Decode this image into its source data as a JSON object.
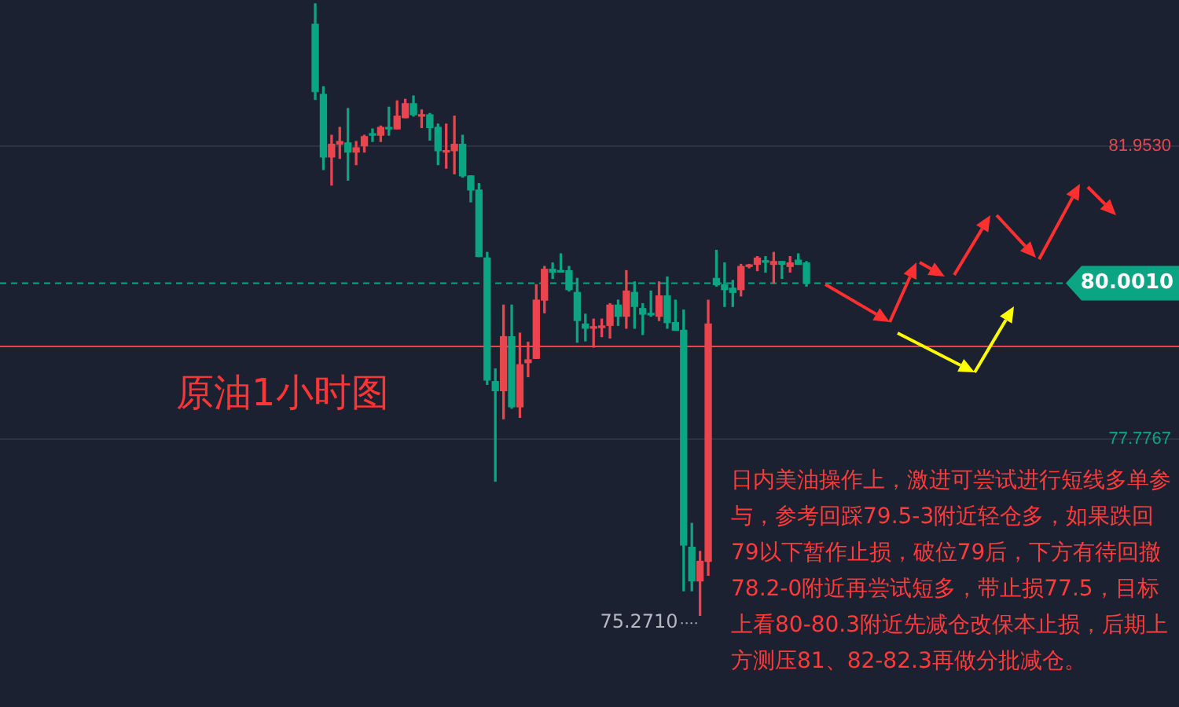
{
  "chart_data": {
    "type": "candlestick",
    "title": "原油1小时图",
    "categories": [
      null,
      null,
      null,
      null,
      null,
      null,
      null,
      null,
      null,
      null,
      null,
      null,
      null,
      null,
      null,
      null,
      null,
      null,
      null,
      null,
      null,
      null,
      null,
      null,
      null,
      null,
      null,
      null,
      null,
      null,
      null,
      null,
      null,
      null,
      null,
      null,
      null,
      null,
      null,
      null,
      null,
      null,
      null,
      null,
      null,
      null,
      null,
      null,
      null,
      null,
      null,
      null,
      null,
      null,
      null,
      null,
      null,
      null,
      null,
      null,
      null,
      null,
      null,
      null,
      null,
      null,
      null,
      null,
      null,
      null,
      null,
      null,
      null,
      null,
      null,
      null,
      null,
      null,
      null,
      null,
      null,
      null,
      null,
      null,
      null,
      null,
      null,
      null,
      null,
      null,
      null,
      null,
      null,
      null,
      null,
      null,
      null,
      null,
      null,
      null,
      null,
      null,
      null,
      null,
      null,
      null,
      null,
      null,
      null,
      null,
      null,
      null,
      null,
      null,
      null,
      null,
      null,
      null,
      null,
      null,
      null,
      null,
      null,
      null,
      null,
      null,
      null,
      null,
      null,
      null,
      null,
      null,
      null,
      null,
      null,
      null,
      null,
      null,
      null,
      null,
      null,
      null,
      null,
      null
    ],
    "ohlc": [
      null,
      null,
      null,
      null,
      null,
      null,
      null,
      null,
      null,
      null,
      null,
      null,
      null,
      null,
      null,
      null,
      null,
      null,
      null,
      null,
      null,
      null,
      null,
      null,
      null,
      null,
      null,
      null,
      null,
      null,
      null,
      null,
      null,
      null,
      null,
      null,
      null,
      null,
      [
        83.69,
        83.98,
        82.62,
        82.73
      ],
      [
        82.69,
        82.8,
        81.62,
        81.8
      ],
      [
        81.8,
        82.11,
        81.4,
        81.98
      ],
      [
        81.98,
        82.22,
        81.78,
        82.02
      ],
      [
        82.0,
        82.49,
        81.47,
        81.87
      ],
      [
        81.87,
        82.02,
        81.69,
        81.93
      ],
      [
        81.96,
        82.11,
        81.87,
        82.09
      ],
      [
        82.13,
        82.2,
        82.02,
        82.11
      ],
      [
        82.11,
        82.24,
        82.02,
        82.22
      ],
      [
        82.22,
        82.51,
        82.11,
        82.2
      ],
      [
        82.2,
        82.6,
        82.2,
        82.38
      ],
      [
        82.36,
        82.62,
        82.36,
        82.56
      ],
      [
        82.56,
        82.67,
        82.38,
        82.4
      ],
      [
        82.38,
        82.47,
        82.22,
        82.4
      ],
      [
        82.4,
        82.42,
        82.04,
        82.22
      ],
      [
        82.22,
        82.27,
        81.69,
        81.89
      ],
      [
        81.87,
        82.27,
        81.64,
        81.88
      ],
      [
        81.89,
        82.38,
        81.56,
        81.98
      ],
      [
        81.98,
        82.11,
        81.51,
        81.53
      ],
      [
        81.53,
        81.53,
        81.16,
        81.33
      ],
      [
        81.33,
        81.42,
        80.38,
        80.38
      ],
      [
        80.36,
        80.44,
        78.56,
        78.62
      ],
      [
        78.6,
        78.78,
        77.18,
        78.47
      ],
      [
        78.47,
        79.69,
        78.07,
        79.24
      ],
      [
        79.24,
        79.69,
        78.22,
        78.24
      ],
      [
        78.24,
        79.29,
        78.09,
        78.84
      ],
      [
        78.87,
        79.16,
        78.67,
        78.91
      ],
      [
        78.93,
        79.98,
        78.93,
        79.76
      ],
      [
        79.76,
        80.24,
        79.58,
        80.2
      ],
      [
        80.2,
        80.29,
        80.07,
        80.16
      ],
      [
        80.18,
        80.42,
        80.16,
        80.16
      ],
      [
        80.18,
        80.24,
        79.89,
        79.91
      ],
      [
        79.87,
        80.07,
        79.16,
        79.47
      ],
      [
        79.42,
        79.56,
        79.18,
        79.36
      ],
      [
        79.36,
        79.49,
        79.09,
        79.38
      ],
      [
        79.37,
        79.49,
        79.24,
        79.38
      ],
      [
        79.4,
        79.71,
        79.22,
        79.69
      ],
      [
        79.69,
        79.76,
        79.4,
        79.53
      ],
      [
        79.53,
        80.18,
        79.36,
        79.89
      ],
      [
        79.87,
        80.02,
        79.36,
        79.67
      ],
      [
        79.64,
        79.71,
        79.27,
        79.56
      ],
      [
        79.56,
        79.89,
        79.53,
        79.55
      ],
      [
        79.53,
        80.02,
        79.47,
        79.82
      ],
      [
        79.82,
        80.09,
        79.36,
        79.44
      ],
      [
        79.44,
        79.76,
        79.33,
        79.33
      ],
      [
        79.33,
        79.62,
        75.62,
        76.27
      ],
      [
        76.24,
        76.58,
        75.62,
        75.76
      ],
      [
        75.76,
        76.18,
        75.271,
        76.04
      ],
      [
        76.04,
        79.76,
        75.84,
        79.42
      ],
      [
        80.07,
        80.47,
        79.96,
        79.98
      ],
      [
        79.98,
        80.29,
        79.67,
        79.91
      ],
      [
        79.93,
        80.04,
        79.67,
        79.87
      ],
      [
        79.91,
        80.27,
        79.82,
        80.24
      ],
      [
        80.24,
        80.27,
        80.22,
        80.26
      ],
      [
        80.27,
        80.38,
        80.18,
        80.36
      ],
      [
        80.31,
        80.38,
        80.16,
        80.3
      ],
      [
        80.27,
        80.44,
        80.0,
        80.31
      ],
      [
        80.31,
        80.31,
        80.07,
        80.27
      ],
      [
        80.24,
        80.38,
        80.16,
        80.29
      ],
      [
        80.33,
        80.42,
        80.27,
        80.27
      ],
      [
        80.29,
        80.31,
        79.96,
        80.001
      ],
      null,
      null,
      null,
      null,
      null,
      null,
      null,
      null,
      null,
      null,
      null,
      null,
      null,
      null,
      null,
      null,
      null,
      null,
      null,
      null,
      null,
      null,
      null,
      null,
      null,
      null,
      null,
      null,
      null,
      null,
      null,
      null,
      null,
      null,
      null,
      null,
      null,
      null,
      null,
      null,
      null,
      null,
      null,
      null,
      null
    ],
    "colors": [
      null,
      null,
      null,
      null,
      null,
      null,
      null,
      null,
      null,
      null,
      null,
      null,
      null,
      null,
      null,
      null,
      null,
      null,
      null,
      null,
      null,
      null,
      null,
      null,
      null,
      null,
      null,
      null,
      null,
      null,
      null,
      null,
      null,
      null,
      null,
      null,
      null,
      null,
      "#0ba583",
      "#0ba583",
      "#e8454f",
      "#e8454f",
      "#0ba583",
      "#e8454f",
      "#e8454f",
      "#0ba583",
      "#e8454f",
      "#0ba583",
      "#e8454f",
      "#e8454f",
      "#0ba583",
      "#e8454f",
      "#0ba583",
      "#0ba583",
      "#e8454f",
      "#e8454f",
      "#0ba583",
      "#0ba583",
      "#0ba583",
      "#0ba583",
      "#0ba583",
      "#e8454f",
      "#0ba583",
      "#e8454f",
      "#e8454f",
      "#e8454f",
      "#e8454f",
      "#0ba583",
      "#0ba583",
      "#0ba583",
      "#0ba583",
      "#0ba583",
      "#e8454f",
      "#e8454f",
      "#e8454f",
      "#0ba583",
      "#e8454f",
      "#0ba583",
      "#0ba583",
      "#0ba583",
      "#e8454f",
      "#0ba583",
      "#0ba583",
      "#0ba583",
      "#0ba583",
      "#e8454f",
      "#e8454f",
      "#0ba583",
      "#0ba583",
      "#0ba583",
      "#e8454f",
      "#e8454f",
      "#e8454f",
      "#0ba583",
      "#e8454f",
      "#0ba583",
      "#e8454f",
      "#0ba583",
      "#0ba583",
      null,
      null,
      null,
      null,
      null,
      null,
      null,
      null,
      null,
      null,
      null,
      null,
      null,
      null,
      null,
      null,
      null,
      null,
      null,
      null,
      null,
      null,
      null,
      null,
      null,
      null,
      null,
      null,
      null,
      null,
      null,
      null,
      null,
      null,
      null,
      null,
      null,
      null,
      null,
      null,
      null,
      null,
      null,
      null,
      null
    ],
    "ylim": [
      74,
      84
    ],
    "yticks": [
      {
        "value": 77.7767,
        "label": "77.7767"
      },
      {
        "value": 81.953,
        "label": "81.9530"
      }
    ],
    "tick_labels": "y",
    "grid": "y",
    "legend": false,
    "ref_lines": [
      {
        "axis": "y",
        "value": 80.001,
        "label": "80.0010",
        "color": "#0ba583",
        "line_style": "dashed"
      },
      {
        "axis": "y",
        "value": 79.1,
        "color": "#e8454f",
        "line_style": "solid"
      }
    ],
    "annotations": [
      "75.2710",
      "日内美油操作上，激进可尝试进行短线多单参与，参考回踩79.5-3附近轻仓多，如果跌回79以下暂作止损，破位79后，下方有待回撤78.2-0附近再尝试短多，带止损77.5，目标上看80-80.3附近先减仓改保本止损，后期上方测压81、82-82.3再做分批减仓。"
    ]
  }
}
